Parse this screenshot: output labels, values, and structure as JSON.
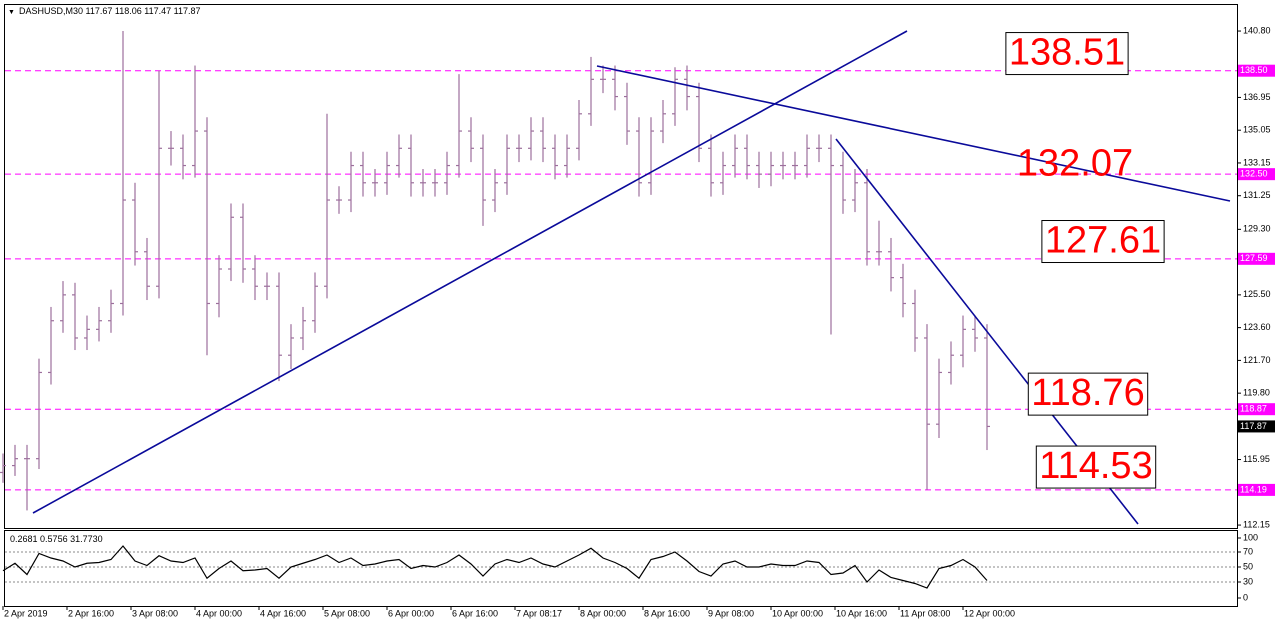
{
  "chart_data": [
    {
      "type": "ohlc",
      "title": "DASHUSD,M30",
      "last_bar": [
        117.67,
        118.06,
        117.47,
        117.87
      ],
      "x": [
        0,
        3,
        6,
        9,
        12,
        15,
        18,
        21,
        24,
        27,
        30,
        33,
        36,
        39,
        42,
        45,
        48,
        51,
        54,
        57,
        60,
        63,
        66,
        69,
        72,
        75,
        78,
        81,
        84,
        87,
        90,
        93,
        96,
        99,
        102,
        105,
        108,
        111,
        114,
        117,
        120,
        123,
        126,
        129,
        132,
        135,
        138,
        141,
        144,
        147,
        150,
        153,
        156,
        159,
        162,
        165,
        168,
        171,
        174,
        177,
        180,
        183,
        186,
        189,
        192,
        195,
        198,
        201,
        204,
        207,
        210,
        213,
        216,
        219,
        222,
        225,
        228,
        231,
        234,
        237,
        240,
        243,
        246
      ],
      "open": [
        115.2,
        115.6,
        116.0,
        116.0,
        121.0,
        124.0,
        125.5,
        123.0,
        123.5,
        124.0,
        125.0,
        131.0,
        128.0,
        126.0,
        134.0,
        134.0,
        133.0,
        135.0,
        125.0,
        127.0,
        130.0,
        127.0,
        126.0,
        126.0,
        122.0,
        123.0,
        124.0,
        126.0,
        131.0,
        131.0,
        133.0,
        132.0,
        132.0,
        133.0,
        134.0,
        132.0,
        132.0,
        132.0,
        133.0,
        135.0,
        134.0,
        131.0,
        132.0,
        134.0,
        134.0,
        135.0,
        134.0,
        133.0,
        134.0,
        136.0,
        138.0,
        138.0,
        137.0,
        135.0,
        132.0,
        135.0,
        136.0,
        138.0,
        137.0,
        134.0,
        132.0,
        133.0,
        134.0,
        133.0,
        132.5,
        133.0,
        133.0,
        133.0,
        134.0,
        134.0,
        133.0,
        131.0,
        132.0,
        128.0,
        128.0,
        126.5,
        125.0,
        123.0,
        118.0,
        121.0,
        122.0,
        123.5,
        123.0
      ],
      "high": [
        116.3,
        116.8,
        116.8,
        121.8,
        124.8,
        126.3,
        126.2,
        124.3,
        124.8,
        125.8,
        140.8,
        132.0,
        128.8,
        138.5,
        135.0,
        134.8,
        138.8,
        135.8,
        127.8,
        130.8,
        130.8,
        127.8,
        126.8,
        126.8,
        123.8,
        124.8,
        126.8,
        136.0,
        131.8,
        133.8,
        133.8,
        132.8,
        133.8,
        134.8,
        134.8,
        132.8,
        132.8,
        133.8,
        138.3,
        135.8,
        134.8,
        132.8,
        134.8,
        134.8,
        135.8,
        135.8,
        134.8,
        134.8,
        136.8,
        139.3,
        138.8,
        138.8,
        137.8,
        135.8,
        135.8,
        136.8,
        138.7,
        138.8,
        137.8,
        134.8,
        133.8,
        134.8,
        134.8,
        133.8,
        133.8,
        133.8,
        133.8,
        134.8,
        134.8,
        134.8,
        133.8,
        132.8,
        132.8,
        129.8,
        128.8,
        127.3,
        125.8,
        123.8,
        121.8,
        122.8,
        124.3,
        124.3,
        123.8
      ],
      "low": [
        114.6,
        115.0,
        113.0,
        115.4,
        120.3,
        123.3,
        122.3,
        122.3,
        122.8,
        123.3,
        124.3,
        127.2,
        125.2,
        125.3,
        133.0,
        132.2,
        132.3,
        122.0,
        124.2,
        126.3,
        126.2,
        125.2,
        125.2,
        120.5,
        121.2,
        122.3,
        123.3,
        125.3,
        130.2,
        130.3,
        131.2,
        131.2,
        131.3,
        132.3,
        131.2,
        131.2,
        131.2,
        131.3,
        132.3,
        133.2,
        129.5,
        130.3,
        131.3,
        133.2,
        133.3,
        133.2,
        132.2,
        132.3,
        133.3,
        135.3,
        137.2,
        136.2,
        134.2,
        131.2,
        131.3,
        134.3,
        135.3,
        136.2,
        133.2,
        131.2,
        131.3,
        132.3,
        132.2,
        131.7,
        131.8,
        132.2,
        132.2,
        132.3,
        133.2,
        123.2,
        130.2,
        130.3,
        127.2,
        127.2,
        125.7,
        124.2,
        122.2,
        114.2,
        117.2,
        120.3,
        121.3,
        122.2,
        116.5
      ],
      "close": [
        115.6,
        116.0,
        116.0,
        121.0,
        124.0,
        125.5,
        123.0,
        123.5,
        124.0,
        125.0,
        131.0,
        128.0,
        126.0,
        134.0,
        134.0,
        133.0,
        135.0,
        125.0,
        127.0,
        130.0,
        127.0,
        126.0,
        126.0,
        122.0,
        123.0,
        124.0,
        126.0,
        131.0,
        131.0,
        133.0,
        132.0,
        132.0,
        133.0,
        134.0,
        132.0,
        132.0,
        132.0,
        133.0,
        135.0,
        134.0,
        131.0,
        132.0,
        134.0,
        134.0,
        135.0,
        134.0,
        133.0,
        134.0,
        136.0,
        138.0,
        138.0,
        137.0,
        135.0,
        132.0,
        135.0,
        136.0,
        138.0,
        137.0,
        134.0,
        132.0,
        133.0,
        134.0,
        133.0,
        132.5,
        133.0,
        133.0,
        133.0,
        134.0,
        134.0,
        133.0,
        131.0,
        132.0,
        128.0,
        128.0,
        126.5,
        125.0,
        123.0,
        118.0,
        121.0,
        122.0,
        123.5,
        123.0,
        117.87
      ],
      "color": "#9c6f9c",
      "xlim": [
        -0.5,
        308.5
      ],
      "xticks": [
        {
          "value": 0,
          "label": "2 Apr 2019"
        },
        {
          "value": 16,
          "label": "2 Apr 16:00"
        },
        {
          "value": 32,
          "label": "3 Apr 08:00"
        },
        {
          "value": 48,
          "label": "4 Apr 00:00"
        },
        {
          "value": 64,
          "label": "4 Apr 16:00"
        },
        {
          "value": 80,
          "label": "5 Apr 08:00"
        },
        {
          "value": 96,
          "label": "6 Apr 00:00"
        },
        {
          "value": 112,
          "label": "6 Apr 16:00"
        },
        {
          "value": 128,
          "label": "7 Apr 08:17"
        },
        {
          "value": 144,
          "label": "8 Apr 00:00"
        },
        {
          "value": 160,
          "label": "8 Apr 16:00"
        },
        {
          "value": 176,
          "label": "9 Apr 08:00"
        },
        {
          "value": 192,
          "label": "10 Apr 00:00"
        },
        {
          "value": 208,
          "label": "10 Apr 16:00"
        },
        {
          "value": 224,
          "label": "11 Apr 08:00"
        },
        {
          "value": 240,
          "label": "12 Apr 00:00"
        }
      ],
      "ylim": [
        111.98,
        142.31
      ],
      "yticks": [
        {
          "value": 140.8,
          "label": "140.80"
        },
        136.95,
        135.05,
        133.15,
        131.25,
        {
          "value": 129.3,
          "label": "129.30"
        },
        {
          "value": 125.5,
          "label": "125.50"
        },
        {
          "value": 123.6,
          "label": "123.60"
        },
        {
          "value": 121.7,
          "label": "121.70"
        },
        {
          "value": 119.8,
          "label": "119.80"
        },
        115.95,
        112.15
      ],
      "levels": [
        {
          "value": 138.5,
          "label": "138.50"
        },
        {
          "value": 132.5,
          "label": "132.50"
        },
        127.59,
        118.87,
        114.19
      ],
      "level_color": "#ff00ff",
      "current_price": 117.87,
      "annotations": [
        138.51,
        132.07,
        127.61,
        118.76,
        114.53
      ],
      "annotation_color": "#ff0000"
    },
    {
      "type": "line",
      "title_values": [
        0.2681,
        0.5756,
        {
          "value": 31.773,
          "label": "31.7730"
        }
      ],
      "values": [
        45,
        55,
        40,
        68,
        62,
        58,
        50,
        55,
        56,
        60,
        78,
        58,
        52,
        65,
        58,
        56,
        62,
        35,
        48,
        58,
        45,
        46,
        48,
        35,
        50,
        55,
        60,
        66,
        56,
        62,
        52,
        54,
        58,
        60,
        48,
        52,
        50,
        56,
        66,
        54,
        38,
        54,
        60,
        56,
        62,
        54,
        50,
        58,
        66,
        75,
        62,
        56,
        48,
        35,
        60,
        64,
        70,
        58,
        44,
        38,
        54,
        58,
        50,
        50,
        54,
        52,
        52,
        58,
        56,
        40,
        42,
        52,
        30,
        46,
        36,
        32,
        28,
        22,
        48,
        52,
        60,
        50,
        32
      ],
      "color": "#000000",
      "ylim": [
        -2,
        98
      ],
      "yticks": [
        100,
        70,
        50,
        30,
        0
      ],
      "levels": [
        70,
        50,
        30
      ]
    }
  ]
}
